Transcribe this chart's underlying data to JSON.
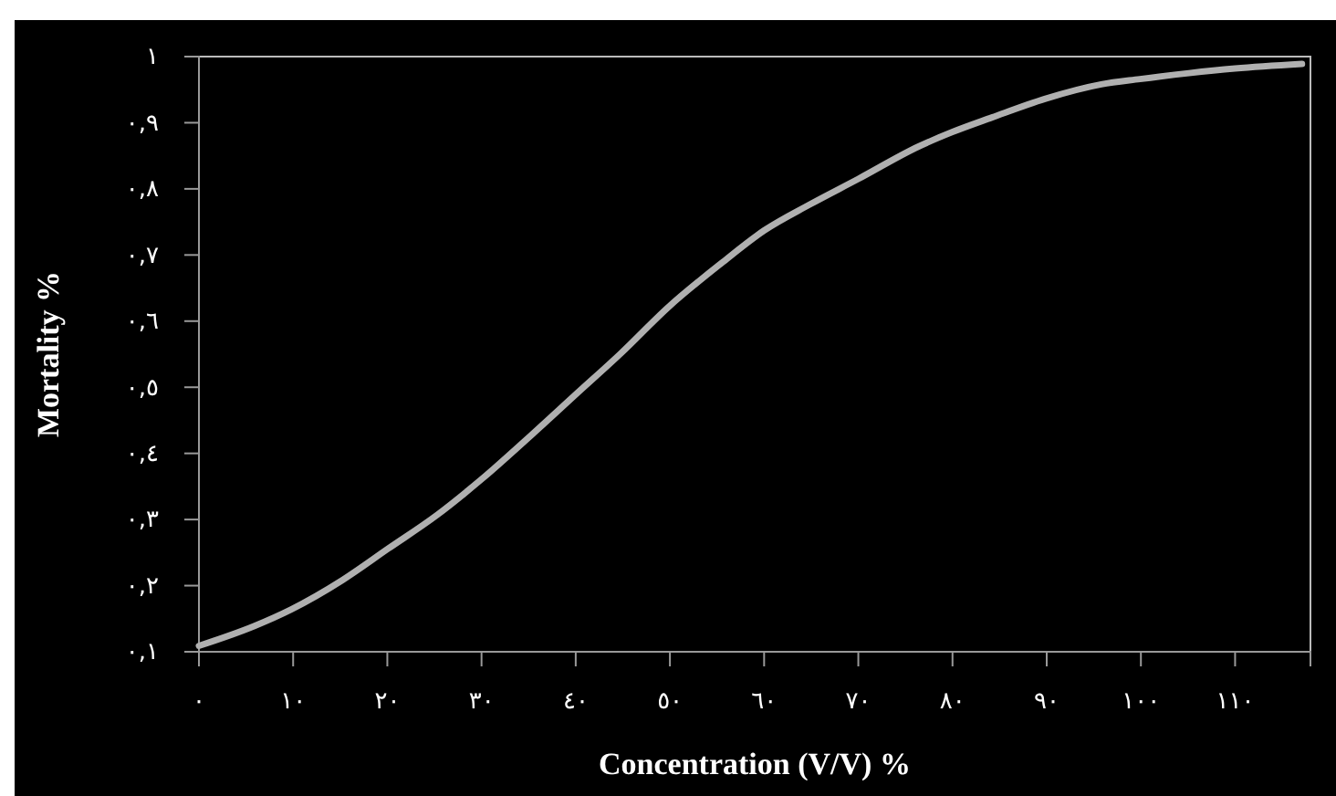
{
  "chart_data": {
    "type": "line",
    "xlabel": "Concentration (V/V) %",
    "ylabel": "Mortality %",
    "x": [
      0,
      5.9,
      9.8,
      15.2,
      20.1,
      25.3,
      30.1,
      35.4,
      40,
      44.7,
      49.9,
      55.5,
      60,
      64.8,
      70,
      76.4,
      80,
      84.2,
      89.8,
      95.8,
      99.9,
      105.1,
      110,
      117.1
    ],
    "series": [
      {
        "color": "#b0b0b0",
        "values": [
          0.109,
          0.139,
          0.164,
          0.208,
          0.256,
          0.307,
          0.362,
          0.429,
          0.489,
          0.55,
          0.622,
          0.688,
          0.737,
          0.776,
          0.815,
          0.864,
          0.886,
          0.908,
          0.936,
          0.958,
          0.966,
          0.975,
          0.982,
          0.989
        ]
      }
    ],
    "xlim": [
      0,
      118
    ],
    "xticks": [
      {
        "value": 0,
        "label": "٠"
      },
      {
        "value": 10,
        "label": "١٠"
      },
      {
        "value": 20,
        "label": "٢٠"
      },
      {
        "value": 30,
        "label": "٣٠"
      },
      {
        "value": 40,
        "label": "٤٠"
      },
      {
        "value": 50,
        "label": "٥٠"
      },
      {
        "value": 60,
        "label": "٦٠"
      },
      {
        "value": 70,
        "label": "٧٠"
      },
      {
        "value": 80,
        "label": "٨٠"
      },
      {
        "value": 90,
        "label": "٩٠"
      },
      {
        "value": 100,
        "label": "١٠٠"
      },
      {
        "value": 110,
        "label": "١١٠"
      }
    ],
    "ylim": [
      0.1,
      1
    ],
    "yticks": [
      {
        "value": 0.1,
        "label": "٠,١"
      },
      {
        "value": 0.2,
        "label": "٠,٢"
      },
      {
        "value": 0.3,
        "label": "٠,٣"
      },
      {
        "value": 0.4,
        "label": "٠,٤"
      },
      {
        "value": 0.5,
        "label": "٠,٥"
      },
      {
        "value": 0.6,
        "label": "٠,٦"
      },
      {
        "value": 0.7,
        "label": "٠,٧"
      },
      {
        "value": 0.8,
        "label": "٠,٨"
      },
      {
        "value": 0.9,
        "label": "٠,٩"
      },
      {
        "value": 1,
        "label": "١"
      }
    ],
    "grid": false,
    "marker": "none",
    "line_style": "solid"
  }
}
